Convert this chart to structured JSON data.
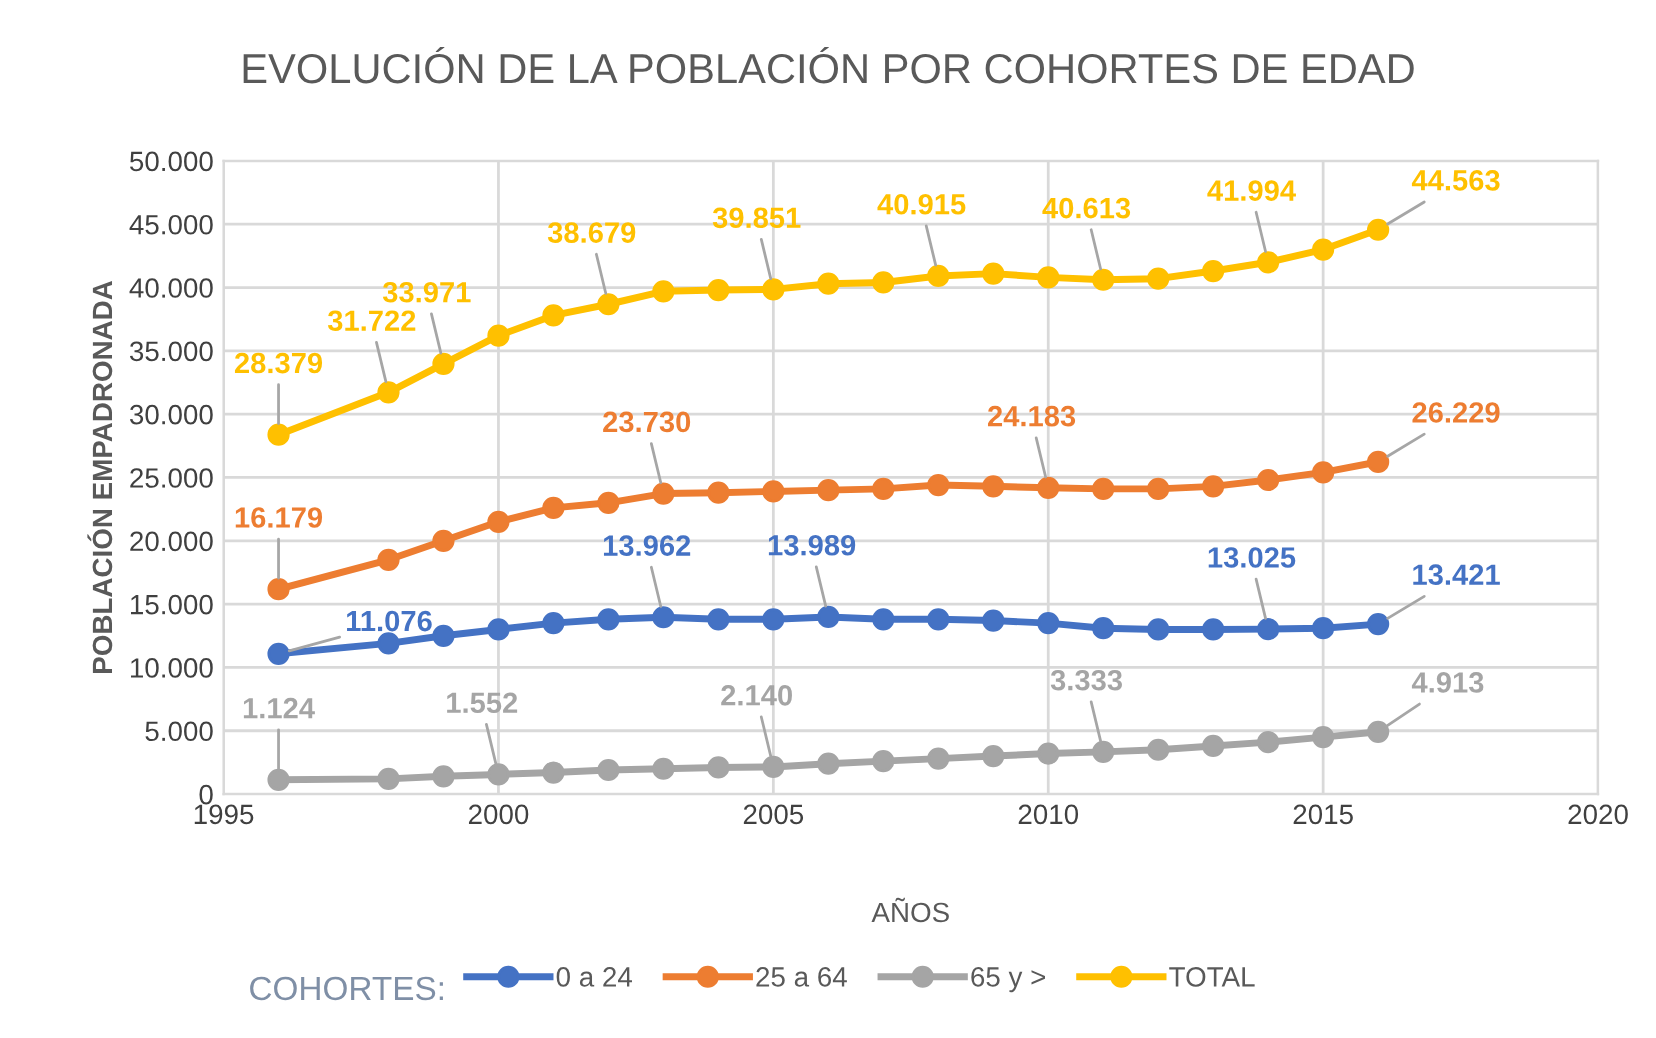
{
  "chart_data": {
    "type": "line",
    "title": "EVOLUCIÓN DE LA POBLACIÓN POR COHORTES DE EDAD",
    "xlabel": "AÑOS",
    "ylabel": "POBLACIÓN EMPADRONADA",
    "legend_title": "COHORTES:",
    "legend": "bottom",
    "grid": true,
    "marker": "circle",
    "line_style": "solid",
    "x": [
      1996,
      1998,
      1999,
      2000,
      2001,
      2002,
      2003,
      2004,
      2005,
      2006,
      2007,
      2008,
      2009,
      2010,
      2011,
      2012,
      2013,
      2014,
      2015,
      2016
    ],
    "xlim": [
      1995,
      2020
    ],
    "xticks": [
      1995,
      2000,
      2005,
      2010,
      2015,
      2020
    ],
    "ylim": [
      0,
      50000
    ],
    "yticks": [
      0,
      {
        "value": 5000,
        "label": "5.000"
      },
      {
        "value": 10000,
        "label": "10.000"
      },
      {
        "value": 15000,
        "label": "15.000"
      },
      {
        "value": 20000,
        "label": "20.000"
      },
      {
        "value": 25000,
        "label": "25.000"
      },
      {
        "value": 30000,
        "label": "30.000"
      },
      {
        "value": 35000,
        "label": "35.000"
      },
      {
        "value": 40000,
        "label": "40.000"
      },
      {
        "value": 45000,
        "label": "45.000"
      },
      {
        "value": 50000,
        "label": "50.000"
      }
    ],
    "series": [
      {
        "name": "0 a 24",
        "color": "#4472c4",
        "values": [
          11076,
          11900,
          12500,
          13000,
          13500,
          13800,
          13962,
          13800,
          13800,
          13989,
          13800,
          13800,
          13700,
          13500,
          13100,
          13000,
          13000,
          13025,
          13100,
          13421
        ],
        "value_labels": [
          "11.076",
          null,
          null,
          null,
          null,
          null,
          "13.962",
          null,
          null,
          "13.989",
          null,
          null,
          null,
          null,
          null,
          null,
          null,
          "13.025",
          null,
          "13.421"
        ]
      },
      {
        "name": "25 a 64",
        "color": "#ed7d31",
        "values": [
          16179,
          18500,
          20000,
          21500,
          22600,
          23000,
          23730,
          23800,
          23900,
          24000,
          24100,
          24400,
          24300,
          24183,
          24100,
          24100,
          24300,
          24800,
          25400,
          26229
        ],
        "value_labels": [
          "16.179",
          null,
          null,
          null,
          null,
          null,
          "23.730",
          null,
          null,
          null,
          null,
          null,
          null,
          "24.183",
          null,
          null,
          null,
          null,
          null,
          "26.229"
        ]
      },
      {
        "name": "65 y >",
        "color": "#a5a5a5",
        "values": [
          1124,
          1200,
          1400,
          1552,
          1700,
          1900,
          2000,
          2100,
          2140,
          2400,
          2600,
          2800,
          3000,
          3200,
          3333,
          3500,
          3800,
          4100,
          4500,
          4913
        ],
        "value_labels": [
          "1.124",
          null,
          null,
          "1.552",
          null,
          null,
          null,
          null,
          "2.140",
          null,
          null,
          null,
          null,
          null,
          "3.333",
          null,
          null,
          null,
          null,
          "4.913"
        ]
      },
      {
        "name": "TOTAL",
        "color": "#ffc000",
        "values": [
          28379,
          31722,
          33971,
          36200,
          37800,
          38679,
          39700,
          39800,
          39851,
          40300,
          40400,
          40915,
          41100,
          40800,
          40613,
          40700,
          41300,
          41994,
          43000,
          44563
        ],
        "value_labels": [
          "28.379",
          "31.722",
          "33.971",
          null,
          null,
          "38.679",
          null,
          null,
          "39.851",
          null,
          null,
          "40.915",
          null,
          null,
          "40.613",
          null,
          null,
          "41.994",
          null,
          "44.563"
        ]
      }
    ]
  }
}
